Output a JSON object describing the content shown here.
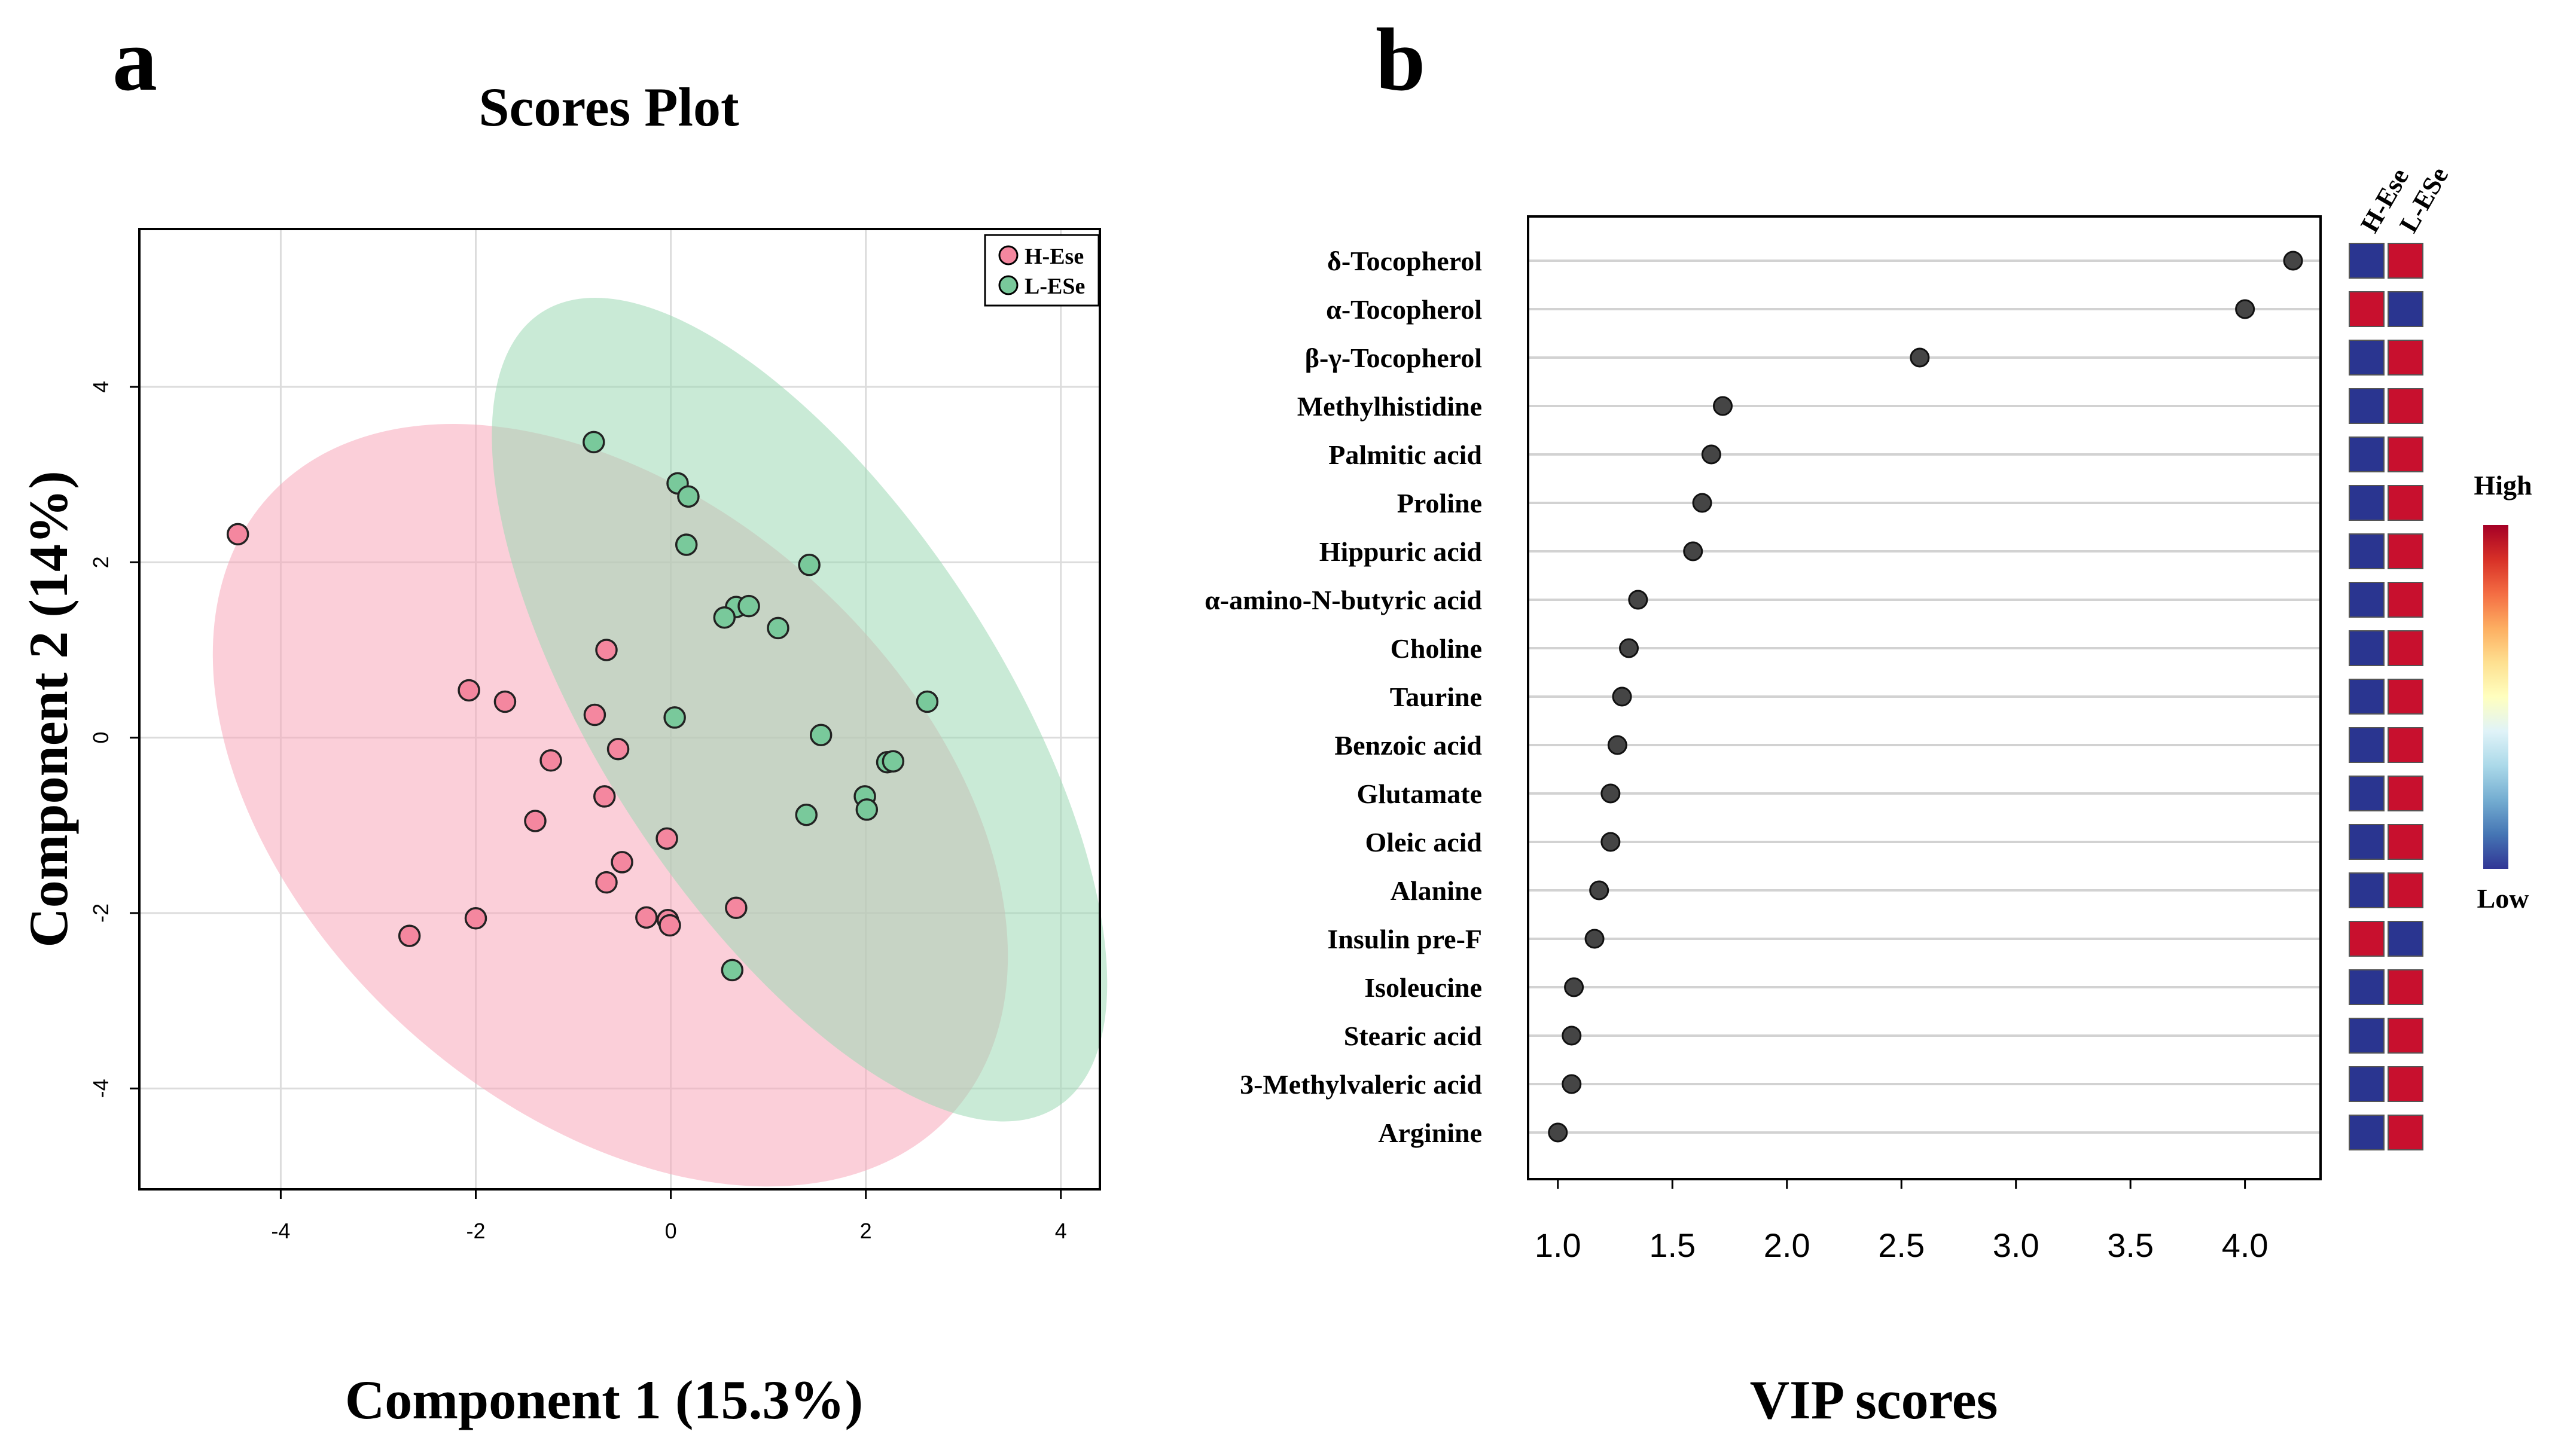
{
  "panels": {
    "a_label": "a",
    "b_label": "b"
  },
  "chart_data": [
    {
      "type": "scatter",
      "title": "Scores Plot",
      "xlabel": "Component 1 (15.3%)",
      "ylabel": "Component 2 (14%)",
      "xlim": [
        -5.45,
        4.4
      ],
      "ylim": [
        -5.15,
        5.8
      ],
      "xticks": [
        -4,
        -2,
        0,
        2,
        4
      ],
      "yticks": [
        -4,
        -2,
        0,
        2,
        4
      ],
      "grid": true,
      "legend_position": "top-right",
      "series": [
        {
          "name": "H-Ese",
          "color": "#f4879f",
          "ellipse_color": "#f7a8b9",
          "points": [
            [
              -4.44,
              2.32
            ],
            [
              -2.07,
              0.54
            ],
            [
              -1.7,
              0.41
            ],
            [
              -0.66,
              1.0
            ],
            [
              -0.78,
              0.26
            ],
            [
              -1.23,
              -0.26
            ],
            [
              -0.54,
              -0.13
            ],
            [
              -0.68,
              -0.67
            ],
            [
              -1.39,
              -0.95
            ],
            [
              -0.5,
              -1.42
            ],
            [
              -0.04,
              -1.15
            ],
            [
              -0.66,
              -1.65
            ],
            [
              -2.68,
              -2.26
            ],
            [
              -2.0,
              -2.06
            ],
            [
              -0.25,
              -2.05
            ],
            [
              -0.03,
              -2.08
            ],
            [
              -0.01,
              -2.14
            ],
            [
              0.67,
              -1.94
            ]
          ],
          "ellipse": {
            "center": [
              -0.62,
              -0.77
            ],
            "semi_axes": [
              3.1,
              5.25
            ],
            "angle_deg": 48
          }
        },
        {
          "name": "L-ESe",
          "color": "#79c99b",
          "ellipse_color": "#9dd8b4",
          "points": [
            [
              -0.79,
              3.37
            ],
            [
              0.07,
              2.9
            ],
            [
              0.18,
              2.75
            ],
            [
              0.16,
              2.2
            ],
            [
              1.42,
              1.97
            ],
            [
              0.67,
              1.49
            ],
            [
              0.8,
              1.5
            ],
            [
              0.55,
              1.37
            ],
            [
              1.1,
              1.25
            ],
            [
              0.04,
              0.23
            ],
            [
              1.54,
              0.03
            ],
            [
              2.63,
              0.41
            ],
            [
              2.22,
              -0.28
            ],
            [
              2.28,
              -0.27
            ],
            [
              1.99,
              -0.67
            ],
            [
              2.01,
              -0.82
            ],
            [
              1.39,
              -0.88
            ],
            [
              0.63,
              -2.65
            ]
          ],
          "ellipse": {
            "center": [
              1.32,
              0.32
            ],
            "semi_axes": [
              2.05,
              5.4
            ],
            "angle_deg": 33
          }
        }
      ]
    },
    {
      "type": "scatter",
      "orientation": "horizontal",
      "xlabel": "VIP scores",
      "xlim": [
        0.87,
        4.33
      ],
      "xticks": [
        "1.0",
        "1.5",
        "2.0",
        "2.5",
        "3.0",
        "3.5",
        "4.0"
      ],
      "xtick_values": [
        1.0,
        1.5,
        2.0,
        2.5,
        3.0,
        3.5,
        4.0
      ],
      "point_color": "#454545",
      "categories": [
        "δ-Tocopherol",
        "α-Tocopherol",
        "β-γ-Tocopherol",
        "Methylhistidine",
        "Palmitic acid",
        "Proline",
        "Hippuric acid",
        "α-amino-N-butyric acid",
        "Choline",
        "Taurine",
        "Benzoic acid",
        "Glutamate",
        "Oleic acid",
        "Alanine",
        "Insulin pre-F",
        "Isoleucine",
        "Stearic acid",
        "3-Methylvaleric acid",
        "Arginine"
      ],
      "values": [
        4.21,
        4.0,
        2.58,
        1.72,
        1.67,
        1.63,
        1.59,
        1.35,
        1.31,
        1.28,
        1.26,
        1.23,
        1.23,
        1.18,
        1.16,
        1.07,
        1.06,
        1.06,
        1.0
      ],
      "heatmap": {
        "columns": [
          "H-Ese",
          "L-ESe"
        ],
        "levels": [
          [
            "Low",
            "High"
          ],
          [
            "High",
            "Low"
          ],
          [
            "Low",
            "High"
          ],
          [
            "Low",
            "High"
          ],
          [
            "Low",
            "High"
          ],
          [
            "Low",
            "High"
          ],
          [
            "Low",
            "High"
          ],
          [
            "Low",
            "High"
          ],
          [
            "Low",
            "High"
          ],
          [
            "Low",
            "High"
          ],
          [
            "Low",
            "High"
          ],
          [
            "Low",
            "High"
          ],
          [
            "Low",
            "High"
          ],
          [
            "Low",
            "High"
          ],
          [
            "High",
            "Low"
          ],
          [
            "Low",
            "High"
          ],
          [
            "Low",
            "High"
          ],
          [
            "Low",
            "High"
          ],
          [
            "Low",
            "High"
          ]
        ],
        "high_color": "#c8102e",
        "low_color": "#2a3590",
        "colorbar": {
          "high_label": "High",
          "low_label": "Low",
          "stops": [
            "#313695",
            "#4575b4",
            "#74add1",
            "#abd9e9",
            "#e0f3f8",
            "#ffffbf",
            "#fee090",
            "#fdae61",
            "#f46d43",
            "#d73027",
            "#a50026"
          ]
        }
      }
    }
  ]
}
